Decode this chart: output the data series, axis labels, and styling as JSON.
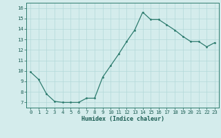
{
  "x": [
    0,
    1,
    2,
    3,
    4,
    5,
    6,
    7,
    8,
    9,
    10,
    11,
    12,
    13,
    14,
    15,
    16,
    17,
    18,
    19,
    20,
    21,
    22,
    23
  ],
  "y": [
    9.9,
    9.2,
    7.8,
    7.1,
    7.0,
    7.0,
    7.0,
    7.4,
    7.4,
    9.4,
    10.5,
    11.6,
    12.8,
    13.9,
    15.6,
    14.9,
    14.9,
    14.4,
    13.9,
    13.3,
    12.8,
    12.8,
    12.3,
    12.7
  ],
  "xlabel": "Humidex (Indice chaleur)",
  "xlim": [
    -0.5,
    23.5
  ],
  "ylim": [
    6.5,
    16.5
  ],
  "yticks": [
    7,
    8,
    9,
    10,
    11,
    12,
    13,
    14,
    15,
    16
  ],
  "xtick_labels": [
    "0",
    "1",
    "2",
    "3",
    "4",
    "5",
    "6",
    "7",
    "8",
    "9",
    "10",
    "11",
    "12",
    "13",
    "14",
    "15",
    "16",
    "17",
    "18",
    "19",
    "20",
    "21",
    "22",
    "23"
  ],
  "line_color": "#2d7b6e",
  "marker_color": "#2d7b6e",
  "bg_color": "#d4ecec",
  "grid_color": "#b2d8d8",
  "axis_color": "#2d7b6e",
  "label_color": "#1a5c52",
  "tick_color": "#1a5c52",
  "tick_fontsize": 5.2,
  "xlabel_fontsize": 6.0
}
